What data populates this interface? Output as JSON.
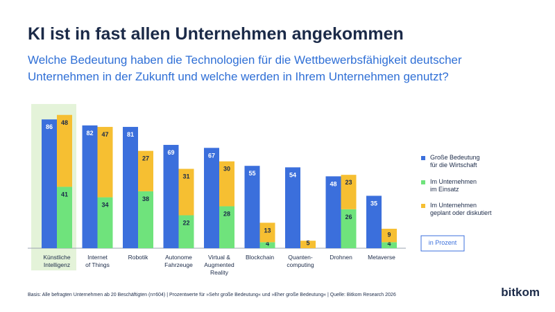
{
  "chart_data": {
    "type": "bar",
    "title": "KI ist in fast allen Unternehmen angekommen",
    "subtitle": "Welche Bedeutung haben die Technologien für die Wettbewerbsfähigkeit deutscher\nUnternehmen in der Zukunft und welche werden in Ihrem Unternehmen genutzt?",
    "categories": [
      "Künstliche\nIntelligenz",
      "Internet\nof Things",
      "Robotik",
      "Autonome\nFahrzeuge",
      "Virtual &\nAugmented\nReality",
      "Blockchain",
      "Quanten-\ncomputing",
      "Drohnen",
      "Metaverse"
    ],
    "series": [
      {
        "name": "Große Bedeutung\nfür die Wirtschaft",
        "color": "#3b6fdc",
        "values": [
          86,
          82,
          81,
          69,
          67,
          55,
          54,
          48,
          35
        ]
      },
      {
        "name": "Im Unternehmen\nim Einsatz",
        "color": "#6fe37c",
        "values": [
          41,
          34,
          38,
          22,
          28,
          4,
          null,
          26,
          4
        ]
      },
      {
        "name": "Im Unternehmen\ngeplant oder diskutiert",
        "color": "#f6bf32",
        "values": [
          48,
          47,
          27,
          31,
          30,
          13,
          5,
          23,
          9
        ]
      }
    ],
    "unit_note": "in Prozent",
    "footnote": "Basis: Alle befragten Unternehmen ab 20 Beschäftigten (n=604) | Prozentwerte für »Sehr große Bedeutung« und »Eher große Bedeutung« | Quelle: Bitkom Research 2026",
    "logo": "bitkom"
  }
}
